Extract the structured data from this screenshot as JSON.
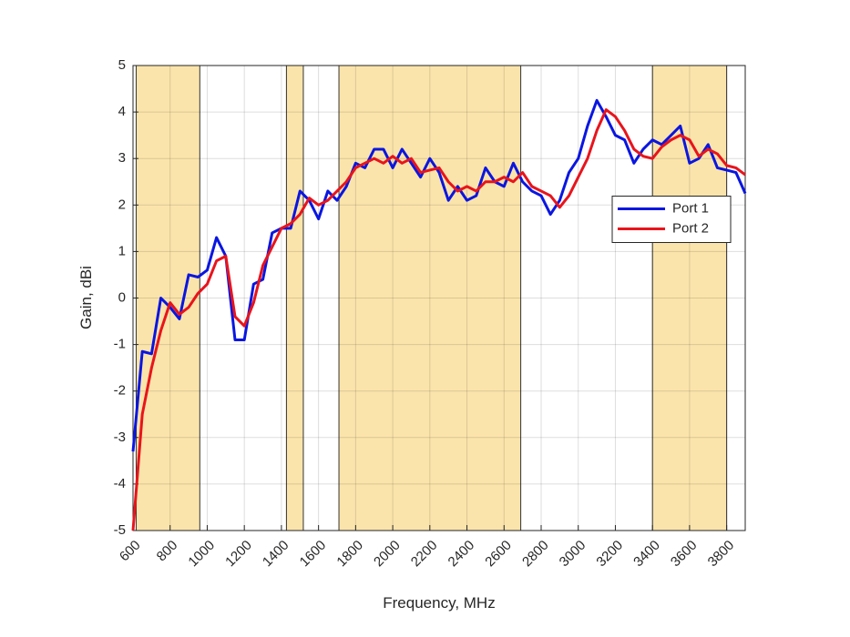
{
  "chart_data": {
    "type": "line",
    "xlabel": "Frequency, MHz",
    "ylabel": "Gain, dBi",
    "xlim": [
      600,
      3900
    ],
    "ylim": [
      -5,
      5
    ],
    "xticks": [
      600,
      800,
      1000,
      1200,
      1400,
      1600,
      1800,
      2000,
      2200,
      2400,
      2600,
      2800,
      3000,
      3200,
      3400,
      3600,
      3800
    ],
    "yticks": [
      -5,
      -4,
      -3,
      -2,
      -1,
      0,
      1,
      2,
      3,
      4,
      5
    ],
    "grid": true,
    "legend": "east",
    "band_color": "#fbe4ab",
    "bands": [
      [
        617,
        960
      ],
      [
        1427,
        1518
      ],
      [
        1710,
        2690
      ],
      [
        3400,
        3800
      ]
    ],
    "x": [
      600,
      650,
      700,
      750,
      800,
      850,
      900,
      950,
      1000,
      1050,
      1100,
      1150,
      1200,
      1250,
      1300,
      1350,
      1400,
      1450,
      1500,
      1550,
      1600,
      1650,
      1700,
      1750,
      1800,
      1850,
      1900,
      1950,
      2000,
      2050,
      2100,
      2150,
      2200,
      2250,
      2300,
      2350,
      2400,
      2450,
      2500,
      2550,
      2600,
      2650,
      2700,
      2750,
      2800,
      2850,
      2900,
      2950,
      3000,
      3050,
      3100,
      3150,
      3200,
      3250,
      3300,
      3350,
      3400,
      3450,
      3500,
      3550,
      3600,
      3650,
      3700,
      3750,
      3800,
      3850,
      3900
    ],
    "series": [
      {
        "name": "Port 1",
        "color": "#0a16e0",
        "values": [
          -3.3,
          -1.15,
          -1.2,
          0.0,
          -0.2,
          -0.45,
          0.5,
          0.45,
          0.6,
          1.3,
          0.9,
          -0.9,
          -0.9,
          0.3,
          0.4,
          1.4,
          1.5,
          1.5,
          2.3,
          2.1,
          1.7,
          2.3,
          2.1,
          2.4,
          2.9,
          2.8,
          3.2,
          3.2,
          2.8,
          3.2,
          2.9,
          2.6,
          3.0,
          2.7,
          2.1,
          2.4,
          2.1,
          2.2,
          2.8,
          2.5,
          2.4,
          2.9,
          2.5,
          2.3,
          2.2,
          1.8,
          2.1,
          2.7,
          3.0,
          3.7,
          4.25,
          3.9,
          3.5,
          3.4,
          2.9,
          3.2,
          3.4,
          3.3,
          3.5,
          3.7,
          2.9,
          3.0,
          3.3,
          2.8,
          2.75,
          2.7,
          2.25
        ]
      },
      {
        "name": "Port 2",
        "color": "#e8141c",
        "values": [
          -5,
          -2.5,
          -1.5,
          -0.7,
          -0.1,
          -0.35,
          -0.2,
          0.1,
          0.3,
          0.8,
          0.9,
          -0.4,
          -0.6,
          -0.1,
          0.7,
          1.1,
          1.5,
          1.6,
          1.8,
          2.15,
          2.0,
          2.1,
          2.3,
          2.5,
          2.8,
          2.9,
          3.0,
          2.9,
          3.05,
          2.9,
          3.0,
          2.7,
          2.75,
          2.8,
          2.5,
          2.3,
          2.4,
          2.3,
          2.5,
          2.5,
          2.6,
          2.5,
          2.7,
          2.4,
          2.3,
          2.2,
          1.95,
          2.2,
          2.6,
          3.0,
          3.6,
          4.05,
          3.9,
          3.6,
          3.2,
          3.05,
          3.0,
          3.25,
          3.4,
          3.5,
          3.4,
          3.05,
          3.2,
          3.1,
          2.85,
          2.8,
          2.65
        ]
      }
    ]
  }
}
